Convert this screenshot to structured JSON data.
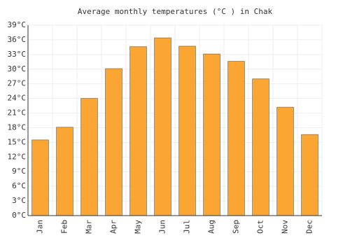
{
  "chart_data": {
    "type": "bar",
    "title": "Average monthly temperatures (°C ) in Chak",
    "categories": [
      "Jan",
      "Feb",
      "Mar",
      "Apr",
      "May",
      "Jun",
      "Jul",
      "Aug",
      "Sep",
      "Oct",
      "Nov",
      "Dec"
    ],
    "values": [
      15.5,
      18.1,
      24.0,
      30.1,
      34.6,
      36.4,
      34.7,
      33.1,
      31.6,
      28.0,
      22.2,
      16.6
    ],
    "color": "#fba532",
    "ylim": [
      0,
      39
    ],
    "yticks": [
      {
        "value": 0,
        "label": "0°C"
      },
      {
        "value": 3,
        "label": "3°C"
      },
      {
        "value": 6,
        "label": "6°C"
      },
      {
        "value": 9,
        "label": "9°C"
      },
      {
        "value": 12,
        "label": "12°C"
      },
      {
        "value": 15,
        "label": "15°C"
      },
      {
        "value": 18,
        "label": "18°C"
      },
      {
        "value": 21,
        "label": "21°C"
      },
      {
        "value": 24,
        "label": "24°C"
      },
      {
        "value": 27,
        "label": "27°C"
      },
      {
        "value": 30,
        "label": "30°C"
      },
      {
        "value": 33,
        "label": "33°C"
      },
      {
        "value": 36,
        "label": "36°C"
      },
      {
        "value": 39,
        "label": "39°C"
      }
    ],
    "grid": true
  }
}
